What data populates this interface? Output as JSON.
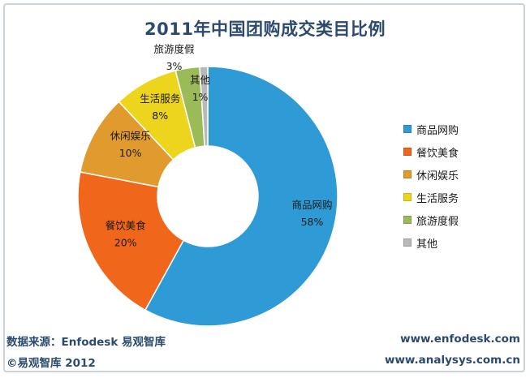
{
  "chart_data": {
    "type": "pie",
    "title": "2011年中国团购成交类目比例",
    "slices": [
      {
        "label": "商品网购",
        "value": 58,
        "value_label": "58%",
        "color": "#2e9ad6"
      },
      {
        "label": "餐饮美食",
        "value": 20,
        "value_label": "20%",
        "color": "#f0661a"
      },
      {
        "label": "休闲娱乐",
        "value": 10,
        "value_label": "10%",
        "color": "#e09a2e"
      },
      {
        "label": "生活服务",
        "value": 8,
        "value_label": "8%",
        "color": "#ecd51c"
      },
      {
        "label": "旅游度假",
        "value": 3,
        "value_label": "3%",
        "color": "#9bbb59"
      },
      {
        "label": "其他",
        "value": 1,
        "value_label": "1%",
        "color": "#b9b9b9"
      }
    ],
    "legend_position": "right",
    "style": "donut"
  },
  "footer": {
    "source": "数据来源：Enfodesk 易观智库",
    "copyright": "©易观智库 2012",
    "url1": "www.enfodesk.com",
    "url2": "www.analysys.com.cn"
  }
}
